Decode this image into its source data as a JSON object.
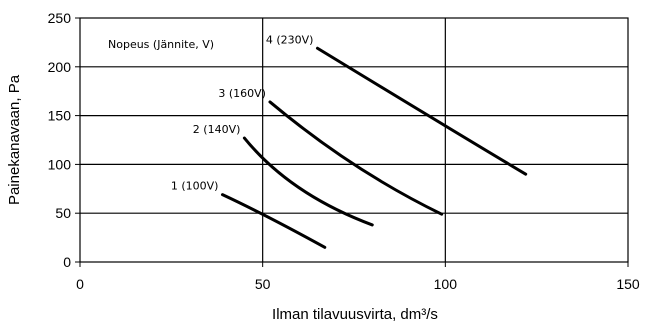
{
  "chart_data": {
    "type": "line",
    "title": "",
    "xlabel": "Ilman tilavuusvirta, dm³/s",
    "ylabel": "Painekanavaan, Pa",
    "xlim": [
      0,
      150
    ],
    "ylim": [
      0,
      250
    ],
    "x_ticks": [
      0,
      50,
      100,
      150
    ],
    "y_ticks": [
      0,
      50,
      100,
      150,
      200,
      250
    ],
    "grid": "major",
    "legend_title": "Nopeus (Jännite, V)",
    "series": [
      {
        "name": "1 (100V)",
        "color": "#000000",
        "points": [
          [
            39,
            69
          ],
          [
            52,
            45
          ],
          [
            67,
            15
          ]
        ]
      },
      {
        "name": "2 (140V)",
        "color": "#000000",
        "points": [
          [
            45,
            127
          ],
          [
            60,
            76
          ],
          [
            80,
            38
          ]
        ]
      },
      {
        "name": "3 (160V)",
        "color": "#000000",
        "points": [
          [
            52,
            164
          ],
          [
            75,
            100
          ],
          [
            99,
            49
          ]
        ]
      },
      {
        "name": "4 (230V)",
        "color": "#000000",
        "points": [
          [
            65,
            219
          ],
          [
            98,
            144
          ],
          [
            122,
            90
          ]
        ]
      }
    ]
  }
}
